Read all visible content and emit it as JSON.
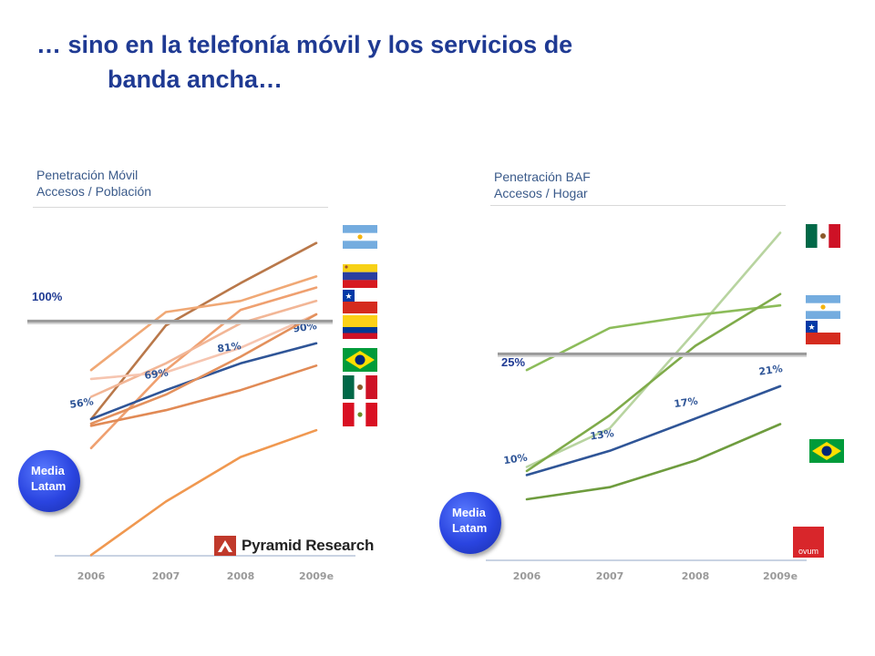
{
  "slide": {
    "title_line1": "… sino en la telefonía móvil y los servicios de",
    "title_line2": "banda ancha…",
    "bubble_label": "Media Latam"
  },
  "chart_data": [
    {
      "type": "line",
      "header_line1": "Penetración Móvil",
      "header_line2": "Accesos / Población",
      "categories": [
        "2006",
        "2007",
        "2008",
        "2009e"
      ],
      "ylim": [
        0,
        150
      ],
      "reference_line": {
        "value": 100,
        "label": "100%"
      },
      "series": [
        {
          "color": "#b9784a",
          "values": [
            56,
            98,
            117,
            135
          ]
        },
        {
          "color": "#f0a875",
          "values": [
            78,
            104,
            109,
            120
          ]
        },
        {
          "color": "#efa070",
          "values": [
            43,
            78,
            105,
            115
          ]
        },
        {
          "color": "#f2b696",
          "values": [
            66,
            81,
            99,
            109
          ]
        },
        {
          "color": "#f6c5b0",
          "values": [
            74,
            77,
            88,
            103
          ]
        },
        {
          "color": "#2f5597",
          "values": [
            56,
            69,
            81,
            90
          ],
          "labels": [
            "56%",
            "69%",
            "81%",
            "90%"
          ]
        },
        {
          "color": "#e3905c",
          "values": [
            54,
            67,
            84,
            103
          ]
        },
        {
          "color": "#e18a55",
          "values": [
            53,
            60,
            69,
            80
          ]
        },
        {
          "color": "#f09850",
          "values": [
            -5,
            19,
            39,
            51
          ]
        }
      ],
      "flags": [
        "argentina-flag",
        "venezuela-flag",
        "chile-flag",
        "colombia-flag",
        "brazil-flag",
        "mexico-flag",
        "peru-flag"
      ],
      "source": "Pyramid Research"
    },
    {
      "type": "line",
      "header_line1": "Penetración BAF",
      "header_line2": "Accesos / Hogar",
      "categories": [
        "2006",
        "2007",
        "2008",
        "2009e"
      ],
      "ylim": [
        0,
        44
      ],
      "reference_line": {
        "value": 25,
        "label": "25%"
      },
      "series": [
        {
          "color": "#b8d4a0",
          "values": [
            11,
            15.8,
            27.8,
            40
          ]
        },
        {
          "color": "#8cbc5a",
          "values": [
            23,
            28.2,
            29.8,
            31
          ]
        },
        {
          "color": "#7fab4a",
          "values": [
            10.5,
            17.4,
            26,
            32.4
          ]
        },
        {
          "color": "#2f5597",
          "values": [
            10,
            13,
            17,
            21
          ],
          "labels": [
            "10%",
            "13%",
            "17%",
            "21%"
          ]
        },
        {
          "color": "#6e9c3e",
          "values": [
            7,
            8.5,
            11.8,
            16.3
          ]
        }
      ],
      "flags": [
        "mexico-flag",
        "argentina-flag",
        "chile-flag",
        "brazil-flag"
      ],
      "source": "ovum"
    }
  ]
}
